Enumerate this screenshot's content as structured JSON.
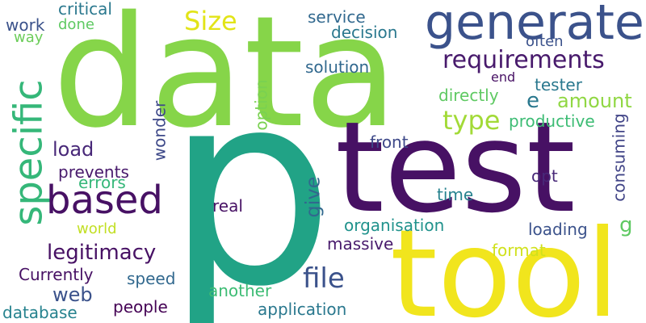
{
  "words": [
    {
      "text": "p",
      "color": "#21a386"
    },
    {
      "text": "data",
      "color": "#86d549"
    },
    {
      "text": "test",
      "color": "#471164"
    },
    {
      "text": "tool",
      "color": "#f1e51d"
    },
    {
      "text": "generate",
      "color": "#3b528b"
    },
    {
      "text": "specific",
      "color": "#35b779"
    },
    {
      "text": "based",
      "color": "#471164"
    },
    {
      "text": "requirements",
      "color": "#481a6c"
    },
    {
      "text": "Size",
      "color": "#e2e418"
    },
    {
      "text": "type",
      "color": "#a2da37"
    },
    {
      "text": "amount",
      "color": "#90d743"
    },
    {
      "text": "legitimacy",
      "color": "#471164"
    },
    {
      "text": "file",
      "color": "#3b528b"
    },
    {
      "text": "load",
      "color": "#482878"
    },
    {
      "text": "e",
      "color": "#2a788e"
    },
    {
      "text": "give",
      "color": "#31688e"
    },
    {
      "text": "g",
      "color": "#5ec962"
    },
    {
      "text": "web",
      "color": "#3b528b"
    },
    {
      "text": "critical",
      "color": "#2a788e"
    },
    {
      "text": "service",
      "color": "#31688e"
    },
    {
      "text": "decision",
      "color": "#2a788e"
    },
    {
      "text": "often",
      "color": "#3b528b"
    },
    {
      "text": "solution",
      "color": "#31688e"
    },
    {
      "text": "end",
      "color": "#471164"
    },
    {
      "text": "tester",
      "color": "#2a788e"
    },
    {
      "text": "directly",
      "color": "#5ec962"
    },
    {
      "text": "productive",
      "color": "#3dbc74"
    },
    {
      "text": "front",
      "color": "#3e4989"
    },
    {
      "text": "opt",
      "color": "#482878"
    },
    {
      "text": "time",
      "color": "#26828e"
    },
    {
      "text": "organisation",
      "color": "#20928c"
    },
    {
      "text": "loading",
      "color": "#3b528b"
    },
    {
      "text": "massive",
      "color": "#481a6c"
    },
    {
      "text": "format",
      "color": "#d0e11c"
    },
    {
      "text": "errors",
      "color": "#35b779"
    },
    {
      "text": "prevents",
      "color": "#481a6c"
    },
    {
      "text": "world",
      "color": "#c2df23"
    },
    {
      "text": "Currently",
      "color": "#471164"
    },
    {
      "text": "real",
      "color": "#471164"
    },
    {
      "text": "speed",
      "color": "#31688e"
    },
    {
      "text": "another",
      "color": "#3dbc74"
    },
    {
      "text": "people",
      "color": "#440154"
    },
    {
      "text": "application",
      "color": "#2a788e"
    },
    {
      "text": "database",
      "color": "#26828e"
    },
    {
      "text": "work",
      "color": "#3b528b"
    },
    {
      "text": "way",
      "color": "#6ccd5a"
    },
    {
      "text": "done",
      "color": "#5ec962"
    },
    {
      "text": "wonder",
      "color": "#3e4989"
    },
    {
      "text": "option",
      "color": "#7ad151"
    },
    {
      "text": "consuming",
      "color": "#414487"
    }
  ]
}
